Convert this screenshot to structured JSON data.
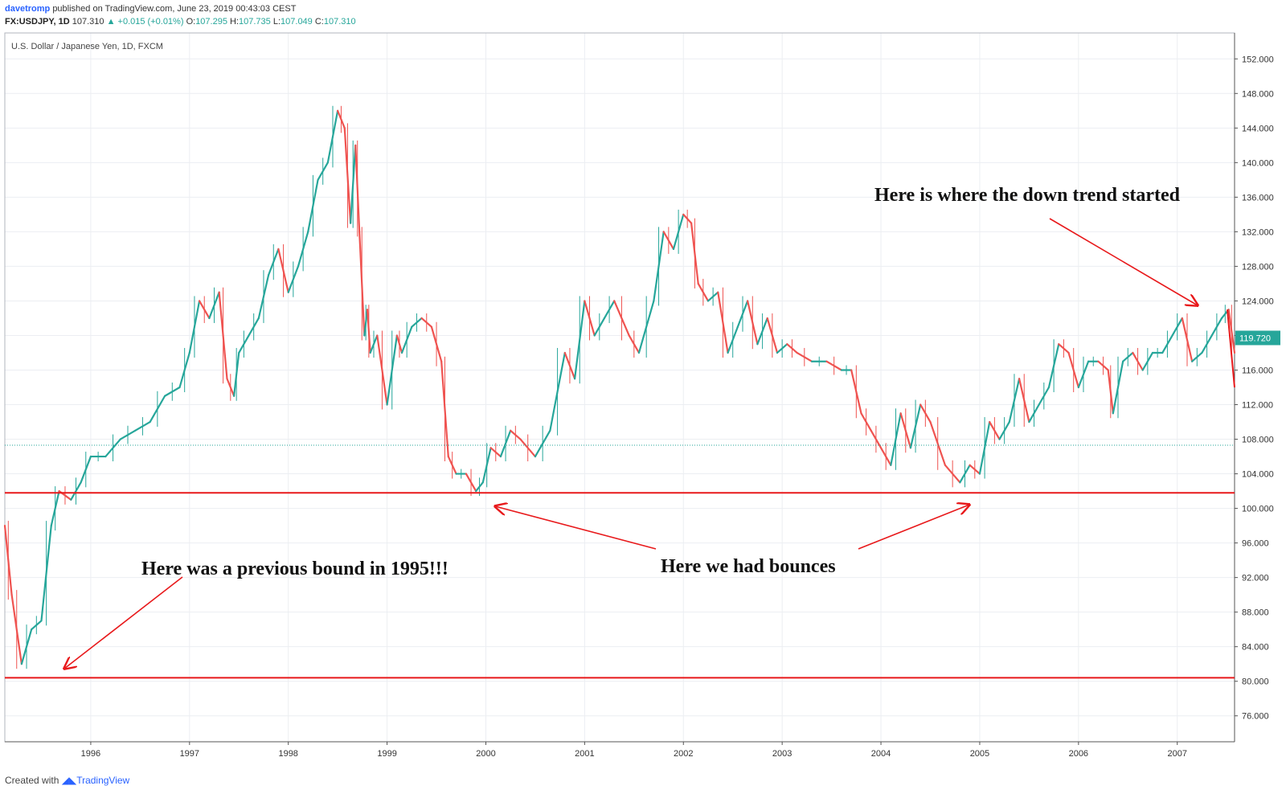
{
  "header": {
    "author": "davetromp",
    "published": "published on TradingView.com, June 23, 2019 00:43:03 CEST",
    "symbol": "FX:USDJPY, 1D",
    "last": "107.310",
    "change_arrow": "▲",
    "change": "+0.015 (+0.01%)",
    "o_label": "O:",
    "o_value": "107.295",
    "h_label": "H:",
    "h_value": "107.735",
    "l_label": "L:",
    "l_value": "107.049",
    "c_label": "C:",
    "c_value": "107.310"
  },
  "footer": {
    "created_with": "Created with",
    "brand": "TradingView"
  },
  "colors": {
    "up": "#26a69a",
    "down": "#ef5350",
    "annotation": "#e8191b",
    "dotted": "#26a69a"
  },
  "chart_data": {
    "type": "line",
    "title": "U.S. Dollar / Japanese Yen, 1D, FXCM",
    "xlabel": "",
    "ylabel": "",
    "xlim": [
      1995.13,
      2007.58
    ],
    "ylim": [
      73,
      155
    ],
    "x_ticks": [
      "1996",
      "1997",
      "1998",
      "1999",
      "2000",
      "2001",
      "2002",
      "2003",
      "2004",
      "2005",
      "2006",
      "2007"
    ],
    "x_tick_values": [
      1996,
      1997,
      1998,
      1999,
      2000,
      2001,
      2002,
      2003,
      2004,
      2005,
      2006,
      2007
    ],
    "y_ticks": [
      "152.000",
      "148.000",
      "144.000",
      "140.000",
      "136.000",
      "132.000",
      "128.000",
      "124.000",
      "120.000",
      "116.000",
      "112.000",
      "108.000",
      "104.000",
      "100.000",
      "96.000",
      "92.000",
      "88.000",
      "84.000",
      "80.000",
      "76.000"
    ],
    "y_tick_values": [
      152,
      148,
      144,
      140,
      136,
      132,
      128,
      124,
      120,
      116,
      112,
      108,
      104,
      100,
      96,
      92,
      88,
      84,
      80,
      76
    ],
    "current_price": {
      "label": "119.720",
      "value": 119.72
    },
    "last_close_line": 107.31,
    "series": [
      {
        "name": "USDJPY",
        "x": [
          1995.13,
          1995.2,
          1995.3,
          1995.4,
          1995.5,
          1995.6,
          1995.68,
          1995.8,
          1995.9,
          1996.0,
          1996.15,
          1996.3,
          1996.45,
          1996.6,
          1996.75,
          1996.9,
          1997.0,
          1997.1,
          1997.2,
          1997.3,
          1997.38,
          1997.45,
          1997.5,
          1997.6,
          1997.7,
          1997.8,
          1997.9,
          1998.0,
          1998.1,
          1998.2,
          1998.3,
          1998.4,
          1998.5,
          1998.57,
          1998.63,
          1998.68,
          1998.72,
          1998.77,
          1998.8,
          1998.83,
          1998.9,
          1999.0,
          1999.1,
          1999.15,
          1999.25,
          1999.35,
          1999.45,
          1999.55,
          1999.62,
          1999.7,
          1999.8,
          1999.9,
          1999.97,
          2000.05,
          2000.15,
          2000.25,
          2000.35,
          2000.5,
          2000.65,
          2000.8,
          2000.9,
          2001.0,
          2001.1,
          2001.2,
          2001.3,
          2001.45,
          2001.55,
          2001.7,
          2001.8,
          2001.9,
          2002.0,
          2002.08,
          2002.15,
          2002.25,
          2002.35,
          2002.45,
          2002.55,
          2002.65,
          2002.75,
          2002.85,
          2002.95,
          2003.05,
          2003.15,
          2003.3,
          2003.45,
          2003.6,
          2003.7,
          2003.8,
          2003.9,
          2004.0,
          2004.1,
          2004.2,
          2004.3,
          2004.4,
          2004.5,
          2004.65,
          2004.8,
          2004.9,
          2005.0,
          2005.1,
          2005.2,
          2005.3,
          2005.4,
          2005.5,
          2005.6,
          2005.7,
          2005.8,
          2005.9,
          2006.0,
          2006.1,
          2006.2,
          2006.3,
          2006.35,
          2006.45,
          2006.55,
          2006.65,
          2006.75,
          2006.85,
          2006.95,
          2007.05,
          2007.15,
          2007.25,
          2007.35,
          2007.45,
          2007.52,
          2007.58
        ],
        "values": [
          98,
          90,
          82,
          86,
          87,
          98,
          102,
          101,
          103,
          106,
          106,
          108,
          109,
          110,
          113,
          114,
          118,
          124,
          122,
          125,
          115,
          113,
          118,
          120,
          122,
          127,
          130,
          125,
          128,
          132,
          138,
          140,
          146,
          144,
          133,
          142,
          132,
          120,
          123,
          118,
          120,
          112,
          120,
          118,
          121,
          122,
          121,
          117,
          106,
          104,
          104,
          102,
          103,
          107,
          106,
          109,
          108,
          106,
          109,
          118,
          115,
          124,
          120,
          122,
          124,
          120,
          118,
          124,
          132,
          130,
          134,
          133,
          126,
          124,
          125,
          118,
          121,
          124,
          119,
          122,
          118,
          119,
          118,
          117,
          117,
          116,
          116,
          111,
          109,
          107,
          105,
          111,
          107,
          112,
          110,
          105,
          103,
          105,
          104,
          110,
          108,
          110,
          115,
          110,
          112,
          114,
          119,
          118,
          114,
          117,
          117,
          116,
          111,
          117,
          118,
          116,
          118,
          118,
          120,
          122,
          117,
          118,
          120,
          122,
          123,
          118
        ]
      }
    ],
    "support_lines": [
      101.8,
      80.4
    ],
    "annotations": [
      {
        "text": "Here is where the down trend started"
      },
      {
        "text": "Here we had bounces"
      },
      {
        "text": "Here was a previous bound in 1995!!!"
      }
    ]
  }
}
